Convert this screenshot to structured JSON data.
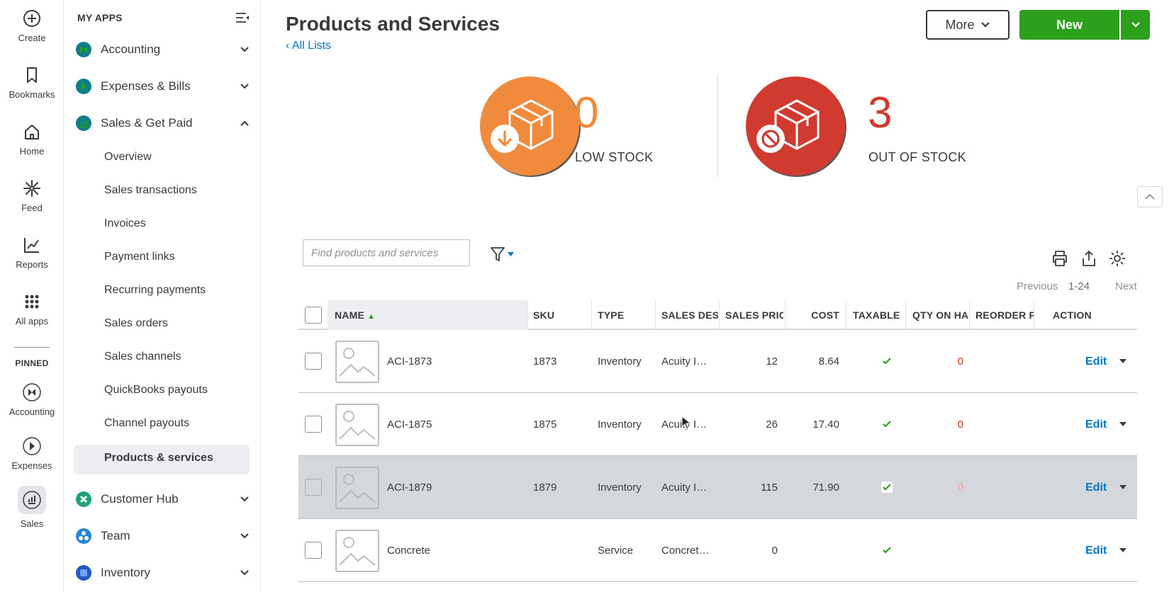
{
  "rail": {
    "items": [
      {
        "label": "Create",
        "icon": "plus-circle-icon"
      },
      {
        "label": "Bookmarks",
        "icon": "bookmark-icon"
      },
      {
        "label": "Home",
        "icon": "home-icon"
      },
      {
        "label": "Feed",
        "icon": "sparkle-icon"
      },
      {
        "label": "Reports",
        "icon": "line-chart-icon"
      },
      {
        "label": "All apps",
        "icon": "grid-icon"
      }
    ],
    "pinned_label": "PINNED",
    "pinned": [
      {
        "label": "Accounting"
      },
      {
        "label": "Expenses"
      },
      {
        "label": "Sales"
      }
    ]
  },
  "sidebar": {
    "heading": "MY APPS",
    "apps": [
      {
        "label": "Accounting",
        "color": "#0d7e8a"
      },
      {
        "label": "Expenses & Bills",
        "color": "#0d7e8a"
      },
      {
        "label": "Sales & Get Paid",
        "color": "#0d7e8a"
      },
      {
        "label": "Customer Hub",
        "color": "#1fa37a"
      },
      {
        "label": "Team",
        "color": "#2a84d6"
      },
      {
        "label": "Inventory",
        "color": "#2059c4"
      }
    ],
    "sales_sub": [
      "Overview",
      "Sales transactions",
      "Invoices",
      "Payment links",
      "Recurring payments",
      "Sales orders",
      "Sales channels",
      "QuickBooks payouts",
      "Channel payouts",
      "Products & services"
    ]
  },
  "header": {
    "title": "Products and Services",
    "back_link": "All Lists",
    "more_label": "More",
    "new_label": "New"
  },
  "stock": {
    "low": {
      "count": "0",
      "label": "LOW STOCK",
      "color": "#f08a3c"
    },
    "out": {
      "count": "3",
      "label": "OUT OF STOCK",
      "color": "#d13b2f"
    }
  },
  "toolbar": {
    "search_placeholder": "Find products and services",
    "prev_label": "Previous",
    "range_label": "1-24",
    "next_label": "Next"
  },
  "table": {
    "headers": {
      "name": "NAME",
      "sku": "SKU",
      "type": "TYPE",
      "sales_desc": "SALES DESC",
      "sales_price": "SALES PRICE",
      "cost": "COST",
      "taxable": "TAXABLE",
      "qty": "QTY ON HAND",
      "reorder": "REORDER POINT",
      "action": "ACTION"
    },
    "rows": [
      {
        "name": "ACI-1873",
        "sku": "1873",
        "type": "Inventory",
        "desc": "Acuity I…",
        "price": "12",
        "cost": "8.64",
        "taxable": true,
        "qty": "0",
        "reorder": "",
        "action": "Edit"
      },
      {
        "name": "ACI-1875",
        "sku": "1875",
        "type": "Inventory",
        "desc": "Acuity I…",
        "price": "26",
        "cost": "17.40",
        "taxable": true,
        "qty": "0",
        "reorder": "",
        "action": "Edit"
      },
      {
        "name": "ACI-1879",
        "sku": "1879",
        "type": "Inventory",
        "desc": "Acuity I…",
        "price": "115",
        "cost": "71.90",
        "taxable": true,
        "qty": "0",
        "reorder": "",
        "action": "Edit"
      },
      {
        "name": "Concrete",
        "sku": "",
        "type": "Service",
        "desc": "Concret…",
        "price": "0",
        "cost": "",
        "taxable": true,
        "qty": "",
        "reorder": "",
        "action": "Edit"
      }
    ]
  }
}
